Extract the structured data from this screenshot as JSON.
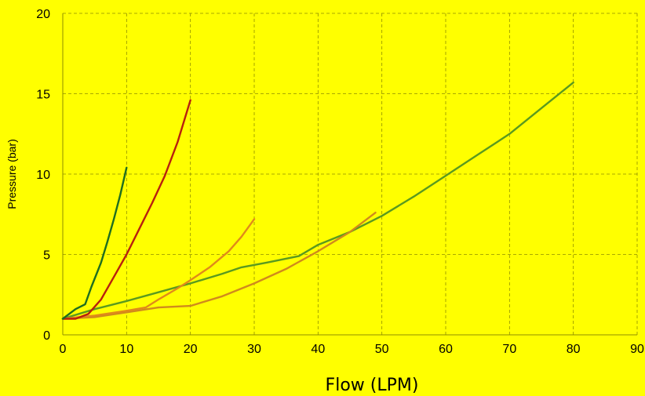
{
  "chart_data": {
    "type": "line",
    "xlabel": "Flow (LPM)",
    "ylabel": "Pressure (bar)",
    "xlim": [
      0,
      90
    ],
    "ylim": [
      0,
      20
    ],
    "xticks": [
      0,
      10,
      20,
      30,
      40,
      50,
      60,
      70,
      80,
      90
    ],
    "yticks": [
      0,
      5,
      10,
      15,
      20
    ],
    "grid": true,
    "series": [
      {
        "color": "#5a9a1f",
        "x": [
          0,
          5,
          10,
          15,
          20,
          25,
          28,
          32,
          37,
          40,
          45,
          50,
          55,
          60,
          65,
          70,
          75,
          80
        ],
        "y": [
          1.0,
          1.6,
          2.1,
          2.65,
          3.2,
          3.8,
          4.2,
          4.5,
          4.9,
          5.6,
          6.4,
          7.4,
          8.6,
          9.9,
          11.2,
          12.5,
          14.1,
          15.7
        ]
      },
      {
        "color": "#d08a1c",
        "x": [
          0,
          5,
          10,
          15,
          20,
          25,
          30,
          35,
          40,
          45,
          49
        ],
        "y": [
          1.0,
          1.1,
          1.4,
          1.7,
          1.8,
          2.4,
          3.2,
          4.1,
          5.2,
          6.4,
          7.6
        ]
      },
      {
        "color": "#e08a1a",
        "x": [
          0,
          5,
          10,
          13,
          15,
          18,
          20,
          23,
          26,
          28,
          30
        ],
        "y": [
          1.0,
          1.2,
          1.5,
          1.7,
          2.2,
          2.9,
          3.4,
          4.2,
          5.2,
          6.1,
          7.2
        ]
      },
      {
        "color": "#b8200e",
        "x": [
          0,
          2,
          4,
          6,
          8,
          10,
          12,
          14,
          16,
          18,
          20
        ],
        "y": [
          1.0,
          1.0,
          1.3,
          2.2,
          3.6,
          5.0,
          6.6,
          8.2,
          9.9,
          12.0,
          14.6
        ]
      },
      {
        "color": "#1f6e1f",
        "x": [
          0,
          2,
          3.5,
          4.5,
          6,
          7,
          8,
          9,
          10
        ],
        "y": [
          1.0,
          1.6,
          1.9,
          3.0,
          4.5,
          5.8,
          7.2,
          8.7,
          10.4
        ]
      }
    ]
  }
}
